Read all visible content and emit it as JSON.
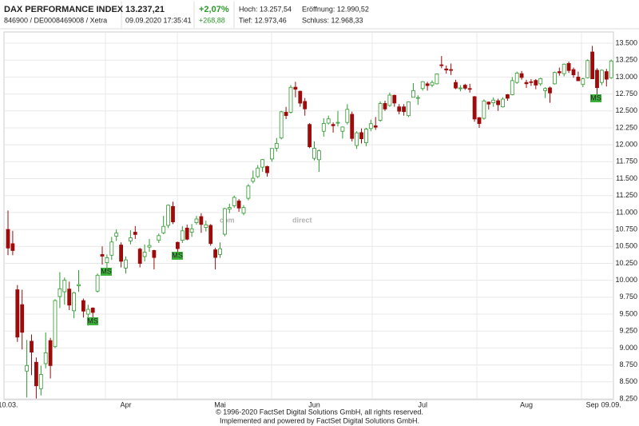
{
  "header": {
    "title": "DAX PERFORMANCE INDEX",
    "id_line": "846900 / DE0008469008 / Xetra",
    "price": "13.237,21",
    "timestamp": "09.09.2020 17:35:41",
    "change_pct": "+2,07%",
    "change_abs": "+268,88",
    "high": "Hoch: 13.257,54",
    "open": "Eröffnung: 12.990,52",
    "low": "Tief: 12.973,46",
    "close": "Schluss: 12.968,33"
  },
  "watermark": [
    "com",
    "direct"
  ],
  "footer": [
    "© 1996-2020 FactSet Digital Solutions GmbH, all rights reserved.",
    "Implemented and powered by FactSet Digital Solutions GmbH."
  ],
  "chart_data": {
    "type": "candlestick",
    "up_color": "#2e9a2e",
    "down_color": "#9e0b0b",
    "grid": true,
    "categories": [
      "10.03.",
      null,
      null,
      null,
      null,
      null,
      null,
      null,
      null,
      null,
      null,
      null,
      null,
      null,
      null,
      null,
      null,
      null,
      null,
      null,
      null,
      null,
      null,
      null,
      null,
      "Apr",
      null,
      null,
      null,
      null,
      null,
      null,
      null,
      null,
      null,
      null,
      null,
      null,
      null,
      null,
      null,
      null,
      null,
      null,
      null,
      "Mai",
      null,
      null,
      null,
      null,
      null,
      null,
      null,
      null,
      null,
      null,
      null,
      null,
      null,
      null,
      null,
      null,
      null,
      null,
      null,
      "Jun",
      null,
      null,
      null,
      null,
      null,
      null,
      null,
      null,
      null,
      null,
      null,
      null,
      null,
      null,
      null,
      null,
      null,
      null,
      null,
      null,
      null,
      null,
      "Jul",
      null,
      null,
      null,
      null,
      null,
      null,
      null,
      null,
      null,
      null,
      null,
      null,
      null,
      null,
      null,
      null,
      null,
      null,
      null,
      null,
      null,
      "Aug",
      null,
      null,
      null,
      null,
      null,
      null,
      null,
      null,
      null,
      null,
      null,
      null,
      null,
      "Sep",
      null,
      null,
      null,
      "09.09."
    ],
    "open": [
      10750,
      10540,
      9860,
      9640,
      8660,
      9100,
      8790,
      8400,
      8770,
      9110,
      9020,
      9760,
      9830,
      9870,
      9550,
      9920,
      9700,
      9500,
      9590,
      9840,
      10380,
      10260,
      10370,
      10650,
      10520,
      10180,
      10580,
      10710,
      10460,
      10350,
      10490,
      10440,
      10590,
      10700,
      10810,
      11090,
      10560,
      10590,
      10770,
      10710,
      10850,
      10940,
      10780,
      10810,
      10450,
      10380,
      10680,
      11050,
      11100,
      11170,
      10990,
      11210,
      11460,
      11530,
      11670,
      11680,
      11790,
      11950,
      12100,
      12480,
      12480,
      12850,
      12790,
      12640,
      12300,
      11800,
      11780,
      12200,
      12320,
      12300,
      12330,
      12200,
      12330,
      12450,
      11990,
      12180,
      12030,
      12240,
      12280,
      12360,
      12610,
      12580,
      12730,
      12560,
      12560,
      12430,
      12700,
      12690,
      12830,
      12900,
      12880,
      12900,
      13180,
      13120,
      13110,
      12920,
      12830,
      12880,
      12830,
      12710,
      12400,
      12390,
      12630,
      12620,
      12650,
      12560,
      12740,
      12740,
      12920,
      13050,
      12920,
      12930,
      12950,
      12900,
      12800,
      12840,
      12900,
      13080,
      13050,
      13200,
      13110,
      13000,
      12890,
      12990,
      13370,
      13100,
      12920,
      13080,
      12990.52
    ],
    "high": [
      11030,
      10730,
      9930,
      9860,
      9120,
      9200,
      8860,
      8740,
      9230,
      9150,
      9720,
      10120,
      10040,
      9980,
      9830,
      10150,
      9730,
      9640,
      9600,
      10100,
      10500,
      10380,
      10640,
      10750,
      10560,
      10350,
      10740,
      10800,
      10480,
      10530,
      10610,
      10450,
      10690,
      10950,
      11120,
      11160,
      10570,
      10800,
      10820,
      10830,
      10950,
      10990,
      10880,
      10830,
      10480,
      10560,
      11070,
      11130,
      11250,
      11200,
      11110,
      11420,
      11620,
      11700,
      11790,
      11690,
      11950,
      12100,
      12500,
      12560,
      12880,
      12930,
      12800,
      12690,
      12320,
      12050,
      11930,
      12390,
      12430,
      12330,
      12500,
      12270,
      12600,
      12490,
      12200,
      12240,
      12250,
      12370,
      12410,
      12640,
      12650,
      12770,
      12740,
      12600,
      12600,
      12640,
      12910,
      12730,
      12940,
      12930,
      12950,
      13050,
      13310,
      13170,
      13200,
      12960,
      12880,
      12900,
      12900,
      12720,
      12410,
      12670,
      12640,
      12700,
      12680,
      12700,
      12750,
      13000,
      13080,
      13090,
      12960,
      12970,
      12970,
      12990,
      12850,
      12860,
      13080,
      13140,
      13200,
      13230,
      13140,
      13080,
      12990,
      13260,
      13460,
      13130,
      13110,
      13120,
      13257.54
    ],
    "low": [
      10370,
      10370,
      9090,
      8980,
      8270,
      8600,
      8255,
      8300,
      8700,
      8550,
      9000,
      9590,
      9640,
      9560,
      9440,
      9830,
      9450,
      9330,
      9450,
      9820,
      10230,
      10160,
      10300,
      10580,
      10190,
      10100,
      10530,
      10610,
      10190,
      10280,
      10420,
      10160,
      10550,
      10680,
      10770,
      10830,
      10410,
      10550,
      10590,
      10640,
      10820,
      10700,
      10720,
      10510,
      10160,
      10330,
      10650,
      10990,
      11070,
      11010,
      10960,
      11180,
      11430,
      11510,
      11600,
      11530,
      11750,
      11900,
      12080,
      12380,
      12460,
      12700,
      12560,
      12430,
      11950,
      11770,
      11600,
      12120,
      12300,
      12180,
      12270,
      12090,
      12300,
      12050,
      11940,
      12020,
      11980,
      12200,
      12220,
      12340,
      12500,
      12560,
      12560,
      12450,
      12430,
      12410,
      12700,
      12590,
      12800,
      12800,
      12850,
      12890,
      13130,
      13050,
      13030,
      12820,
      12790,
      12810,
      12770,
      12340,
      12250,
      12370,
      12520,
      12560,
      12500,
      12550,
      12650,
      12730,
      12900,
      12960,
      12840,
      12870,
      12820,
      12870,
      12690,
      12620,
      12890,
      13020,
      13010,
      13060,
      12990,
      12940,
      12850,
      12980,
      12970,
      12660,
      12880,
      12860,
      12973.46
    ],
    "close": [
      10475,
      10439,
      9161,
      9232,
      8742,
      8939,
      8442,
      8610,
      8929,
      8741,
      9701,
      9874,
      10000,
      9633,
      9816,
      9936,
      9544,
      9571,
      9525,
      10075,
      10356,
      10333,
      10565,
      10696,
      10280,
      10301,
      10626,
      10676,
      10249,
      10415,
      10514,
      10336,
      10659,
      10796,
      11107,
      10862,
      10467,
      10730,
      10606,
      10759,
      10904,
      10824,
      10819,
      10542,
      10337,
      10465,
      11058,
      11075,
      11223,
      11066,
      11074,
      11391,
      11505,
      11657,
      11781,
      11587,
      11945,
      12021,
      12487,
      12431,
      12848,
      12820,
      12615,
      12530,
      11970,
      11949,
      11911,
      12315,
      12382,
      12281,
      12331,
      12262,
      12523,
      12093,
      12177,
      12089,
      12232,
      12311,
      12260,
      12608,
      12528,
      12733,
      12616,
      12495,
      12489,
      12633,
      12800,
      12697,
      12931,
      12874,
      12920,
      13046,
      13171,
      13104,
      13103,
      12838,
      12839,
      12835,
      12822,
      12380,
      12313,
      12647,
      12600,
      12660,
      12591,
      12674,
      12687,
      12947,
      13058,
      12993,
      12901,
      12920,
      12881,
      12977,
      12830,
      12765,
      13067,
      13062,
      13190,
      13096,
      13033,
      12945,
      12974,
      13243,
      12974,
      12843,
      13100,
      12968,
      13237.21
    ],
    "annotations": [
      "MS",
      "MS",
      "MS",
      "MS"
    ],
    "ylim": [
      8250,
      13500
    ],
    "yticks": [
      {
        "value": 8250,
        "label": "8.250"
      },
      {
        "value": 8500,
        "label": "8.500"
      },
      {
        "value": 8750,
        "label": "8.750"
      },
      {
        "value": 9000,
        "label": "9.000"
      },
      {
        "value": 9250,
        "label": "9.250"
      },
      {
        "value": 9500,
        "label": "9.500"
      },
      {
        "value": 9750,
        "label": "9.750"
      },
      {
        "value": 10000,
        "label": "10.000"
      },
      {
        "value": 10250,
        "label": "10.250"
      },
      {
        "value": 10500,
        "label": "10.500"
      },
      {
        "value": 10750,
        "label": "10.750"
      },
      {
        "value": 11000,
        "label": "11.000"
      },
      {
        "value": 11250,
        "label": "11.250"
      },
      {
        "value": 11500,
        "label": "11.500"
      },
      {
        "value": 11750,
        "label": "11.750"
      },
      {
        "value": 12000,
        "label": "12.000"
      },
      {
        "value": 12250,
        "label": "12.250"
      },
      {
        "value": 12500,
        "label": "12.500"
      },
      {
        "value": 12750,
        "label": "12.750"
      },
      {
        "value": 13000,
        "label": "13.000"
      },
      {
        "value": 13250,
        "label": "13.250"
      },
      {
        "value": 13500,
        "label": "13.500"
      }
    ]
  }
}
